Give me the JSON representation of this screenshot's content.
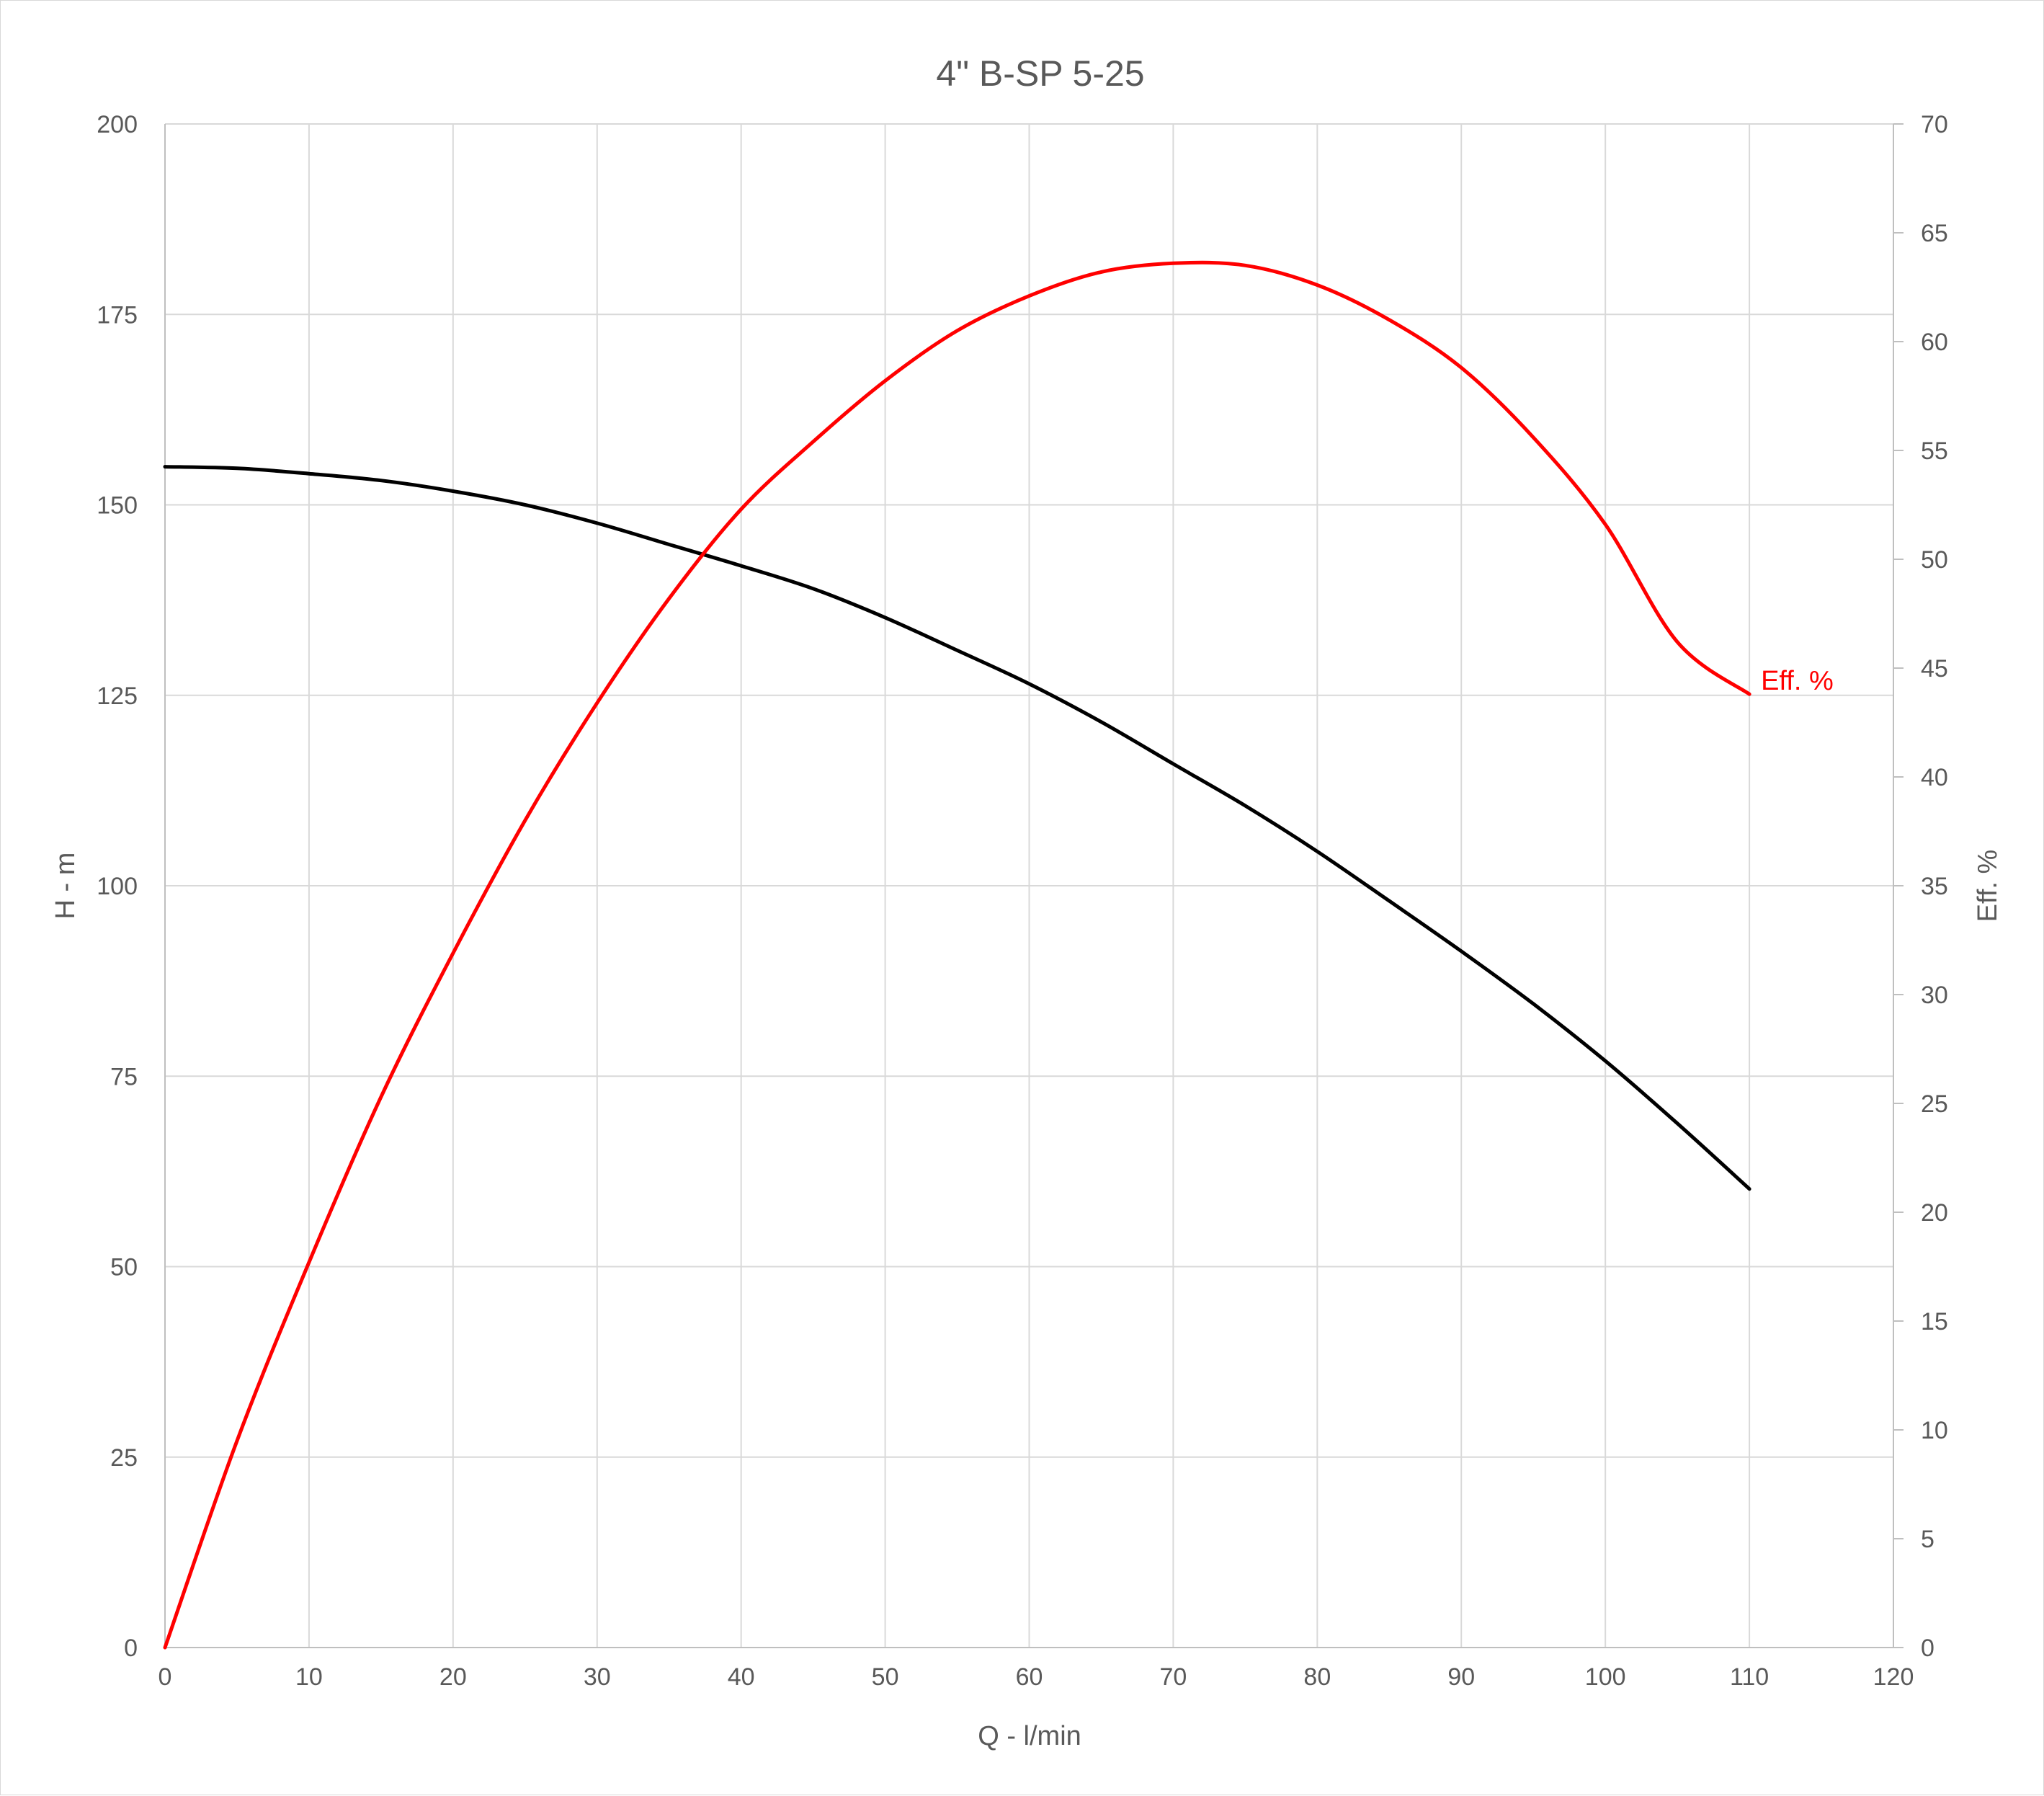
{
  "chart_data": {
    "type": "line",
    "title": "4\" B-SP 5-25",
    "xlabel": "Q - l/min",
    "ylabel": "H - m",
    "y2label": "Eff. %",
    "xlim": [
      0,
      120
    ],
    "ylim": [
      0,
      200
    ],
    "y2lim": [
      0,
      70
    ],
    "x_ticks": [
      0,
      10,
      20,
      30,
      40,
      50,
      60,
      70,
      80,
      90,
      100,
      110,
      120
    ],
    "y_ticks": [
      0,
      25,
      50,
      75,
      100,
      125,
      150,
      175,
      200
    ],
    "y2_ticks": [
      0,
      5,
      10,
      15,
      20,
      25,
      30,
      35,
      40,
      45,
      50,
      55,
      60,
      65,
      70
    ],
    "grid": true,
    "series": [
      {
        "axis": "left",
        "color": "#000000",
        "x": [
          0,
          5,
          10,
          15,
          20,
          25,
          30,
          35,
          40,
          45,
          50,
          55,
          60,
          65,
          70,
          75,
          80,
          85,
          90,
          95,
          100,
          105,
          110
        ],
        "values": [
          155,
          154.8,
          154.1,
          153.2,
          151.8,
          150.0,
          147.6,
          144.8,
          142.0,
          139.0,
          135.2,
          130.9,
          126.5,
          121.5,
          116.0,
          110.5,
          104.5,
          98.0,
          91.4,
          84.5,
          77.0,
          68.8,
          60.2
        ]
      },
      {
        "name": "Eff. %",
        "axis": "right",
        "color": "#ff0000",
        "x": [
          0,
          5,
          10,
          15,
          20,
          25,
          30,
          35,
          40,
          45,
          50,
          55,
          60,
          65,
          70,
          75,
          80,
          85,
          90,
          95,
          100,
          105,
          110
        ],
        "values": [
          0,
          9.5,
          17.7,
          25.3,
          31.9,
          38.0,
          43.4,
          48.2,
          52.3,
          55.4,
          58.2,
          60.5,
          62.1,
          63.2,
          63.6,
          63.5,
          62.6,
          61.0,
          58.8,
          55.6,
          51.6,
          46.2,
          43.8
        ]
      }
    ]
  }
}
